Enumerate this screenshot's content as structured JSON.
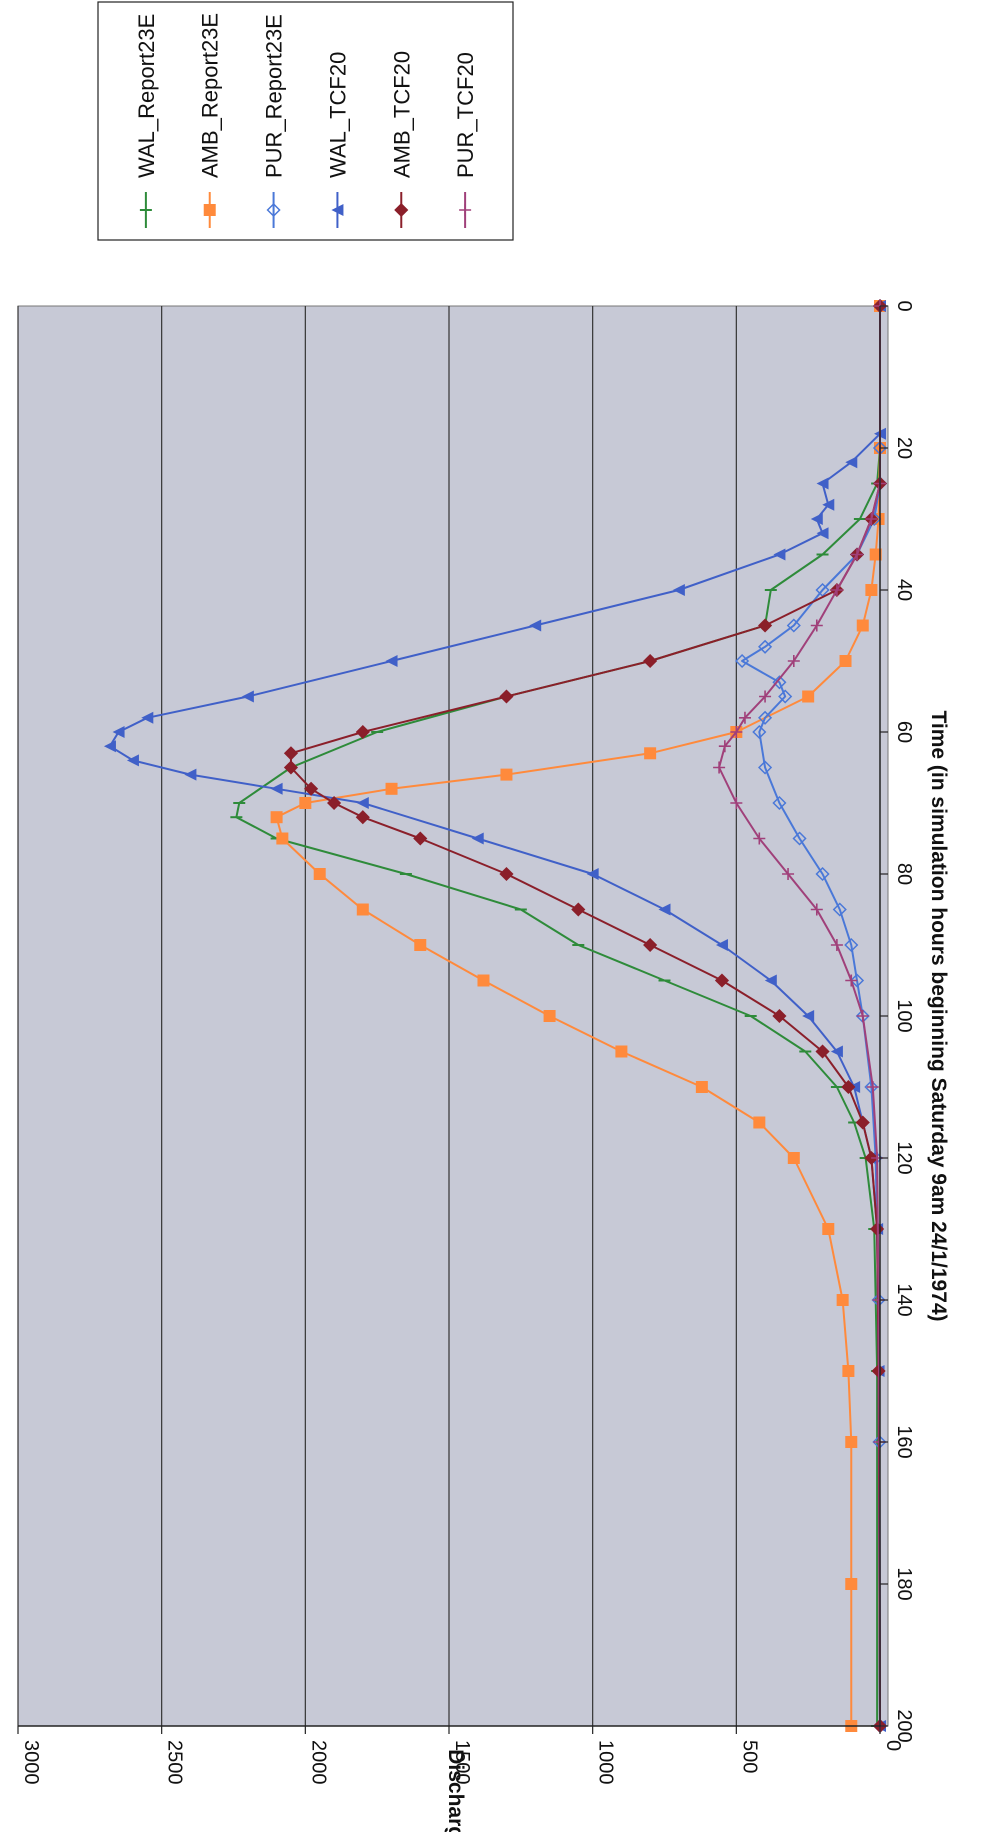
{
  "chart_data": {
    "type": "line",
    "xlabel": "Time (in simulation hours beginning Saturday 9am 24/1/1974)",
    "ylabel": "Discharge",
    "xlim": [
      0,
      200
    ],
    "ylim": [
      0,
      3000
    ],
    "xticks": [
      "0",
      "20",
      "40",
      "60",
      "80",
      "100",
      "120",
      "140",
      "160",
      "180",
      "200"
    ],
    "yticks": [
      "0",
      "500",
      "1000",
      "1500",
      "2000",
      "2500",
      "3000"
    ],
    "grid": "horizontal",
    "legend_position": "top-right",
    "orientation": "rotated-90-clockwise",
    "series": [
      {
        "name": "WAL_Report23E",
        "color": "#2e8b3a",
        "marker": "dash",
        "x": [
          0,
          20,
          25,
          30,
          35,
          40,
          45,
          50,
          55,
          60,
          65,
          70,
          72,
          75,
          80,
          85,
          90,
          95,
          100,
          105,
          110,
          115,
          120,
          130,
          150,
          200
        ],
        "y": [
          0,
          0,
          10,
          70,
          200,
          380,
          400,
          800,
          1300,
          1750,
          2050,
          2230,
          2240,
          2100,
          1650,
          1250,
          1050,
          750,
          450,
          260,
          150,
          90,
          50,
          20,
          10,
          10
        ]
      },
      {
        "name": "AMB_Report23E",
        "color": "#ff8a3c",
        "marker": "square",
        "x": [
          0,
          20,
          30,
          35,
          40,
          45,
          50,
          55,
          60,
          63,
          66,
          68,
          70,
          72,
          75,
          80,
          85,
          90,
          95,
          100,
          105,
          110,
          115,
          120,
          130,
          140,
          150,
          160,
          180,
          200
        ],
        "y": [
          0,
          0,
          5,
          15,
          30,
          60,
          120,
          250,
          500,
          800,
          1300,
          1700,
          2000,
          2100,
          2080,
          1950,
          1800,
          1600,
          1380,
          1150,
          900,
          620,
          420,
          300,
          180,
          130,
          110,
          100,
          100,
          100
        ]
      },
      {
        "name": "PUR_Report23E",
        "color": "#4a78d8",
        "marker": "diamond-open",
        "x": [
          0,
          20,
          25,
          30,
          35,
          40,
          45,
          48,
          50,
          53,
          55,
          58,
          60,
          65,
          70,
          75,
          80,
          85,
          90,
          95,
          100,
          110,
          120,
          140,
          160,
          200
        ],
        "y": [
          0,
          0,
          0,
          20,
          80,
          200,
          300,
          400,
          480,
          350,
          330,
          400,
          420,
          400,
          350,
          280,
          200,
          140,
          100,
          80,
          60,
          30,
          15,
          5,
          2,
          0
        ]
      },
      {
        "name": "WAL_TCF20",
        "color": "#4060c8",
        "marker": "triangle",
        "x": [
          0,
          18,
          22,
          25,
          28,
          30,
          32,
          35,
          40,
          45,
          50,
          55,
          58,
          60,
          62,
          64,
          66,
          68,
          70,
          75,
          80,
          85,
          90,
          95,
          100,
          105,
          110,
          120,
          130,
          150,
          200
        ],
        "y": [
          0,
          0,
          100,
          200,
          180,
          220,
          200,
          350,
          700,
          1200,
          1700,
          2200,
          2550,
          2650,
          2680,
          2600,
          2400,
          2100,
          1800,
          1400,
          1000,
          750,
          550,
          380,
          250,
          150,
          90,
          30,
          10,
          5,
          0
        ]
      },
      {
        "name": "AMB_TCF20",
        "color": "#8b1f2a",
        "marker": "diamond",
        "x": [
          0,
          25,
          30,
          35,
          40,
          45,
          50,
          55,
          60,
          63,
          65,
          68,
          70,
          72,
          75,
          80,
          85,
          90,
          95,
          100,
          105,
          110,
          115,
          120,
          130,
          150,
          200
        ],
        "y": [
          0,
          0,
          30,
          80,
          150,
          400,
          800,
          1300,
          1800,
          2050,
          2050,
          1980,
          1900,
          1800,
          1600,
          1300,
          1050,
          800,
          550,
          350,
          200,
          110,
          60,
          30,
          10,
          5,
          0
        ]
      },
      {
        "name": "PUR_TCF20",
        "color": "#a0407a",
        "marker": "plus",
        "x": [
          0,
          25,
          30,
          35,
          40,
          45,
          50,
          55,
          58,
          60,
          62,
          65,
          70,
          75,
          80,
          85,
          90,
          95,
          100,
          110,
          120,
          140,
          160,
          200
        ],
        "y": [
          0,
          0,
          30,
          80,
          150,
          220,
          300,
          400,
          470,
          500,
          540,
          560,
          500,
          420,
          320,
          220,
          150,
          100,
          60,
          25,
          10,
          5,
          2,
          0
        ]
      }
    ]
  }
}
